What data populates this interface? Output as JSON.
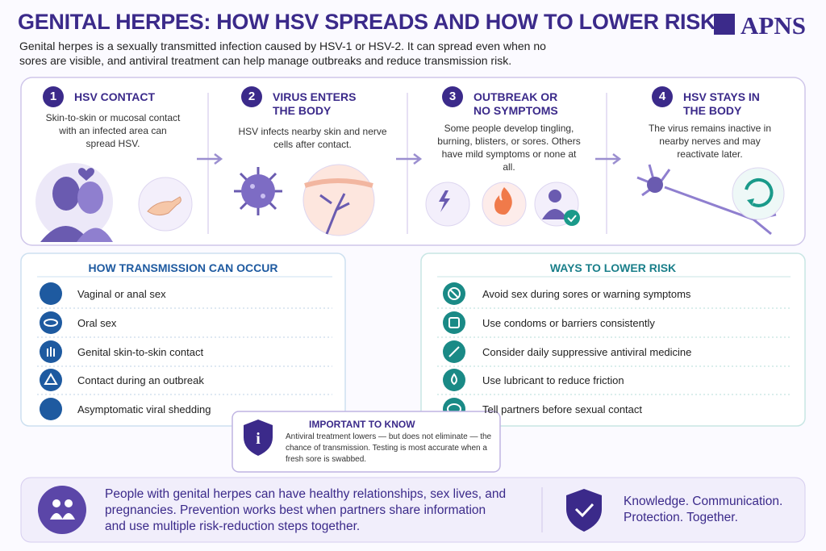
{
  "header": {
    "title": "GENITAL HERPES: HOW HSV SPREADS AND HOW TO LOWER RISK",
    "logo": "APNS",
    "subtitle": "Genital herpes is a sexually transmitted infection caused by HSV-1 or HSV-2. It can spread even when no sores are visible, and antiviral treatment can help manage outbreaks and reduce transmission risk."
  },
  "steps": [
    {
      "number": "1",
      "title": "HSV CONTACT",
      "text": "Skin-to-skin or mucosal contact with an infected area can spread HSV."
    },
    {
      "number": "2",
      "title": "VIRUS ENTERS THE BODY",
      "text": "HSV infects nearby skin and nerve cells after contact."
    },
    {
      "number": "3",
      "title": "OUTBREAK OR NO SYMPTOMS",
      "text": "Some people develop tingling, burning, blisters, or sores. Others have mild symptoms or none at all."
    },
    {
      "number": "4",
      "title": "HSV STAYS IN THE BODY",
      "text": "The virus remains inactive in nearby nerves and may reactivate later."
    }
  ],
  "transmission": {
    "title": "HOW TRANSMISSION CAN OCCUR",
    "items": [
      "Vaginal or anal sex",
      "Oral sex",
      "Genital skin-to-skin contact",
      "Contact during an outbreak",
      "Asymptomatic viral shedding"
    ]
  },
  "lower_risk": {
    "title": "WAYS TO LOWER RISK",
    "items": [
      "Avoid sex during sores or warning symptoms",
      "Use condoms or barriers consistently",
      "Consider daily suppressive antiviral medicine",
      "Use lubricant to reduce friction",
      "Tell partners before sexual contact"
    ]
  },
  "important": {
    "title": "IMPORTANT TO KNOW",
    "text": "Antiviral treatment lowers — but does not eliminate — the chance of transmission. Testing is most accurate when a fresh sore is swabbed."
  },
  "footer": {
    "message": "People with genital herpes can have healthy relationships, sex lives, and pregnancies. Prevention works best when partners share information and use multiple risk-reduction steps together.",
    "tagline": "Knowledge. Communication. Protection. Together."
  }
}
